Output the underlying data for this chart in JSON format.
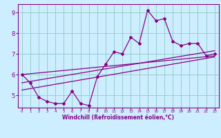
{
  "xlabel": "Windchill (Refroidissement éolien,°C)",
  "ylabel": "",
  "background_color": "#cceeff",
  "line_color": "#880088",
  "grid_color": "#99cccc",
  "xlim": [
    -0.5,
    23.5
  ],
  "ylim": [
    4.4,
    9.4
  ],
  "yticks": [
    5,
    6,
    7,
    8,
    9
  ],
  "xticks": [
    0,
    1,
    2,
    3,
    4,
    5,
    6,
    7,
    8,
    9,
    10,
    11,
    12,
    13,
    14,
    15,
    16,
    17,
    18,
    19,
    20,
    21,
    22,
    23
  ],
  "data_x": [
    0,
    1,
    2,
    3,
    4,
    5,
    6,
    7,
    8,
    9,
    10,
    11,
    12,
    13,
    14,
    15,
    16,
    17,
    18,
    19,
    20,
    21,
    22,
    23
  ],
  "data_y": [
    6.0,
    5.6,
    4.9,
    4.7,
    4.6,
    4.6,
    5.2,
    4.6,
    4.5,
    5.9,
    6.5,
    7.1,
    7.0,
    7.8,
    7.5,
    9.1,
    8.6,
    8.7,
    7.6,
    7.4,
    7.5,
    7.5,
    6.9,
    7.0
  ],
  "trend1_x": [
    0,
    23
  ],
  "trend1_y": [
    6.0,
    6.9
  ],
  "trend2_x": [
    0,
    23
  ],
  "trend2_y": [
    5.6,
    7.15
  ],
  "trend3_x": [
    0,
    23
  ],
  "trend3_y": [
    5.25,
    6.85
  ]
}
